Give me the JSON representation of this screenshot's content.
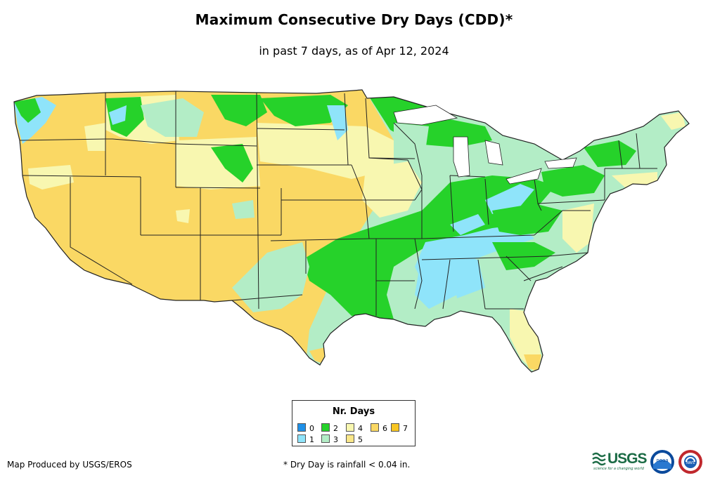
{
  "title": "Maximum Consecutive Dry Days (CDD)*",
  "subtitle": "in past 7 days, as of Apr 12, 2024",
  "legend": {
    "title": "Nr. Days",
    "items": [
      {
        "label": "0",
        "color": "#1e90e8"
      },
      {
        "label": "1",
        "color": "#8fe4fa"
      },
      {
        "label": "2",
        "color": "#26d22a"
      },
      {
        "label": "3",
        "color": "#b3edc6"
      },
      {
        "label": "4",
        "color": "#f8f7b0"
      },
      {
        "label": "5",
        "color": "#fae789"
      },
      {
        "label": "6",
        "color": "#fad864"
      },
      {
        "label": "7",
        "color": "#f8c623"
      }
    ]
  },
  "credit": "Map Produced by USGS/EROS",
  "footnote": "* Dry Day is rainfall < 0.04 in.",
  "logos": {
    "usgs": "USGS",
    "usgs_tagline": "science for a changing world",
    "noaa": "noaa",
    "nws": "NWS"
  },
  "colors": {
    "border": "#222222",
    "water": "#ffffff"
  }
}
